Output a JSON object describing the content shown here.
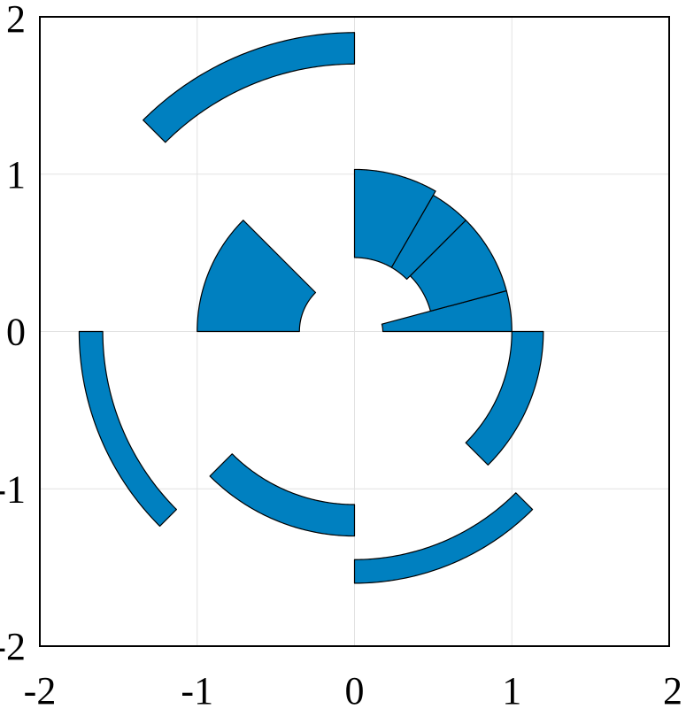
{
  "chart_data": {
    "type": "polar-sector",
    "title": "",
    "xlabel": "",
    "ylabel": "",
    "xlim": [
      -2,
      2
    ],
    "ylim": [
      -2,
      2
    ],
    "grid": true,
    "x_ticks": [
      {
        "value": -2,
        "label": "-2"
      },
      {
        "value": -1,
        "label": "-1"
      },
      {
        "value": 0,
        "label": "0"
      },
      {
        "value": 1,
        "label": "1"
      },
      {
        "value": 2,
        "label": "2"
      }
    ],
    "y_ticks": [
      {
        "value": -2,
        "label": "-2"
      },
      {
        "value": -1,
        "label": "-1"
      },
      {
        "value": 0,
        "label": "0"
      },
      {
        "value": 1,
        "label": "1"
      },
      {
        "value": 2,
        "label": "2"
      }
    ],
    "color": "#0080c0",
    "sectors": [
      {
        "theta_start_deg": 0,
        "theta_end_deg": 15,
        "r_inner": 0.18,
        "r_outer": 1.0
      },
      {
        "theta_start_deg": 15,
        "theta_end_deg": 45,
        "r_inner": 0.5,
        "r_outer": 1.0
      },
      {
        "theta_start_deg": 45,
        "theta_end_deg": 60,
        "r_inner": 0.47,
        "r_outer": 1.0
      },
      {
        "theta_start_deg": 60,
        "theta_end_deg": 90,
        "r_inner": 0.47,
        "r_outer": 1.03
      },
      {
        "theta_start_deg": 90,
        "theta_end_deg": 135,
        "r_inner": 1.7,
        "r_outer": 1.9
      },
      {
        "theta_start_deg": 135,
        "theta_end_deg": 180,
        "r_inner": 0.35,
        "r_outer": 1.0
      },
      {
        "theta_start_deg": 180,
        "theta_end_deg": 225,
        "r_inner": 1.6,
        "r_outer": 1.75
      },
      {
        "theta_start_deg": 225,
        "theta_end_deg": 270,
        "r_inner": 1.1,
        "r_outer": 1.3
      },
      {
        "theta_start_deg": 270,
        "theta_end_deg": 315,
        "r_inner": 1.45,
        "r_outer": 1.6
      },
      {
        "theta_start_deg": 315,
        "theta_end_deg": 360,
        "r_inner": 1.0,
        "r_outer": 1.2
      }
    ]
  }
}
